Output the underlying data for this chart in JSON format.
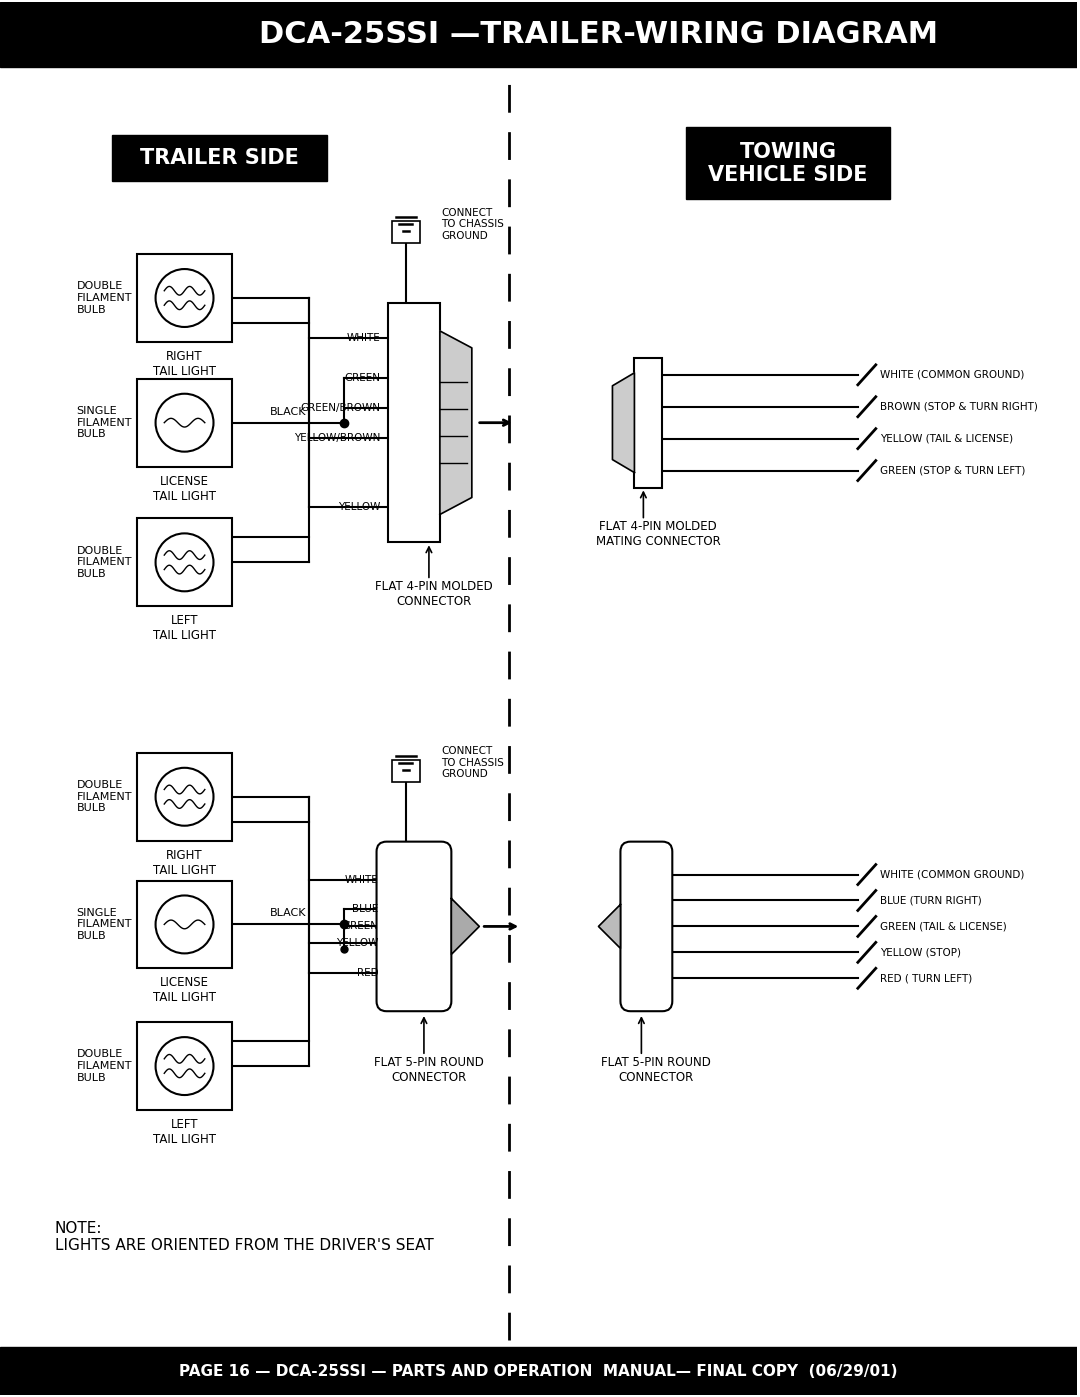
{
  "title": "DCA-25SSI —TRAILER-WIRING DIAGRAM",
  "footer": "PAGE 16 — DCA-25SSI — PARTS AND OPERATION  MANUAL— FINAL COPY  (06/29/01)",
  "trailer_side_label": "TRAILER SIDE",
  "towing_side_label": "TOWING\nVEHICLE SIDE",
  "note_text": "NOTE:\nLIGHTS ARE ORIENTED FROM THE DRIVER'S SEAT",
  "top4pin_vehicle_wires": [
    "WHITE (COMMON GROUND)",
    "BROWN (STOP & TURN RIGHT)",
    "YELLOW (TAIL & LICENSE)",
    "GREEN (STOP & TURN LEFT)"
  ],
  "bot5pin_vehicle_wires": [
    "WHITE (COMMON GROUND)",
    "BLUE (TURN RIGHT)",
    "GREEN (TAIL & LICENSE)",
    "YELLOW (STOP)",
    "RED ( TURN LEFT)"
  ],
  "top4pin_wire_labels": [
    "WHITE",
    "GREEN",
    "GREEN/BROWN",
    "YELLOW/BROWN",
    "YELLOW"
  ],
  "bot5pin_wire_labels": [
    "WHITE",
    "BLUE",
    "GREEN",
    "YELLOW",
    "RED"
  ],
  "bg_color": "#ffffff",
  "header_bg": "#000000",
  "header_fg": "#ffffff",
  "footer_bg": "#000000",
  "footer_fg": "#ffffff"
}
